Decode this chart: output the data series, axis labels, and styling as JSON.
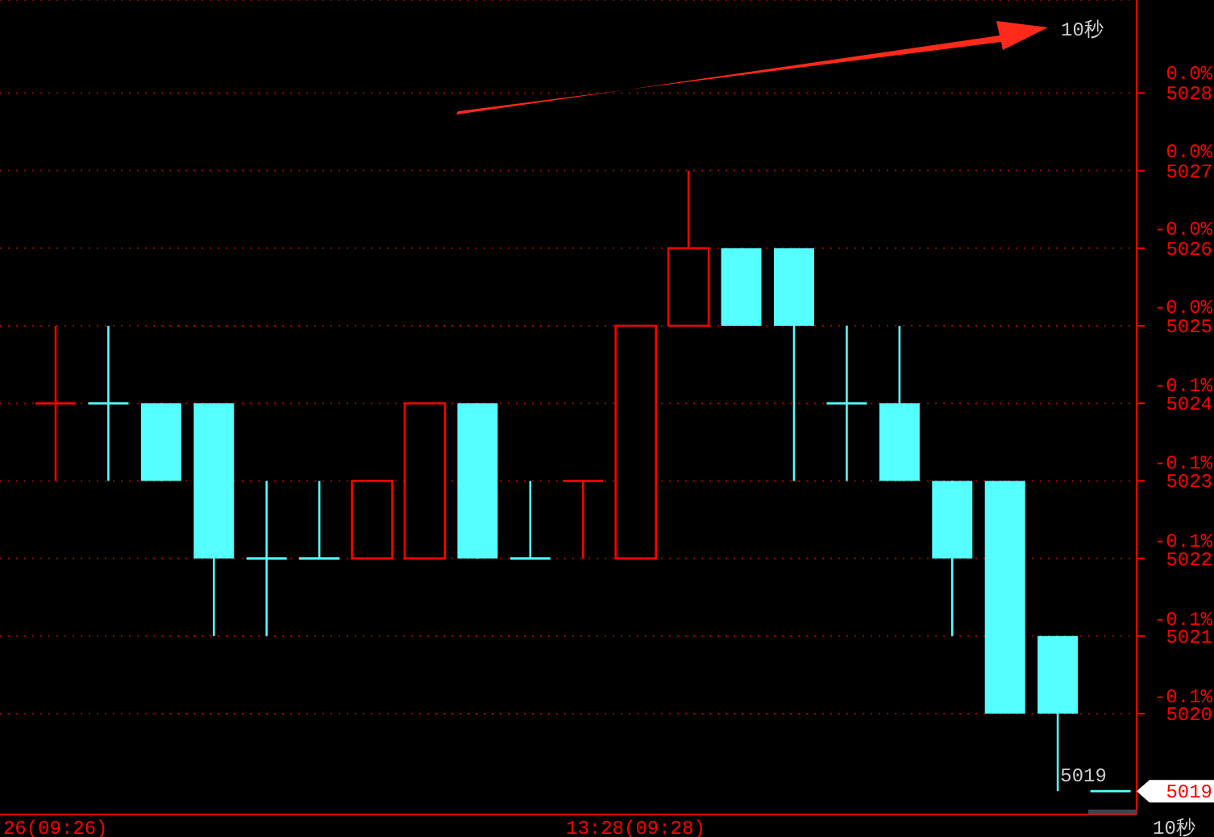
{
  "chart_data": {
    "type": "candlestick",
    "categories": [
      "26(09:26)",
      null,
      null,
      null,
      null,
      null,
      null,
      null,
      null,
      null,
      null,
      "13:28(09:28)",
      null,
      null,
      null,
      null,
      null,
      null,
      null,
      null,
      null
    ],
    "ohlc": [
      [
        5024,
        5025,
        5023,
        5024
      ],
      [
        5024,
        5025,
        5023,
        5024
      ],
      [
        5024,
        5024,
        5023,
        5023
      ],
      [
        5024,
        5024,
        5021,
        5022
      ],
      [
        5022,
        5023,
        5021,
        5022
      ],
      [
        5022,
        5023,
        5022,
        5022
      ],
      [
        5022,
        5023,
        5022,
        5023
      ],
      [
        5022,
        5024,
        5022,
        5024
      ],
      [
        5024,
        5024,
        5022,
        5022
      ],
      [
        5022,
        5023,
        5022,
        5022
      ],
      [
        5023,
        5023,
        5022,
        5023
      ],
      [
        5022,
        5025,
        5022,
        5025
      ],
      [
        5025,
        5027,
        5025,
        5026
      ],
      [
        5026,
        5026,
        5025,
        5025
      ],
      [
        5026,
        5026,
        5023,
        5025
      ],
      [
        5024,
        5025,
        5023,
        5024
      ],
      [
        5024,
        5025,
        5023,
        5023
      ],
      [
        5023,
        5023,
        5021,
        5022
      ],
      [
        5023,
        5023,
        5020,
        5020
      ],
      [
        5021,
        5021,
        5019,
        5020
      ],
      [
        5019,
        5019,
        5019,
        5019
      ]
    ],
    "colors": [
      "#ff0000",
      "#55ffff",
      "#55ffff",
      "#55ffff",
      "#55ffff",
      "#55ffff",
      "#ff0000",
      "#ff0000",
      "#55ffff",
      "#55ffff",
      "#ff0000",
      "#ff0000",
      "#ff0000",
      "#55ffff",
      "#55ffff",
      "#55ffff",
      "#55ffff",
      "#55ffff",
      "#55ffff",
      "#55ffff",
      "#55ffff"
    ],
    "ylim": [
      5018.7,
      5029.2
    ],
    "yticks": [
      5028,
      5027,
      5026,
      5025,
      5024,
      5023,
      5022,
      5021,
      5020
    ],
    "y2lim": [
      -0.165,
      0.044
    ],
    "y2ticks": [
      {
        "value": 0.02,
        "label": "0.0%"
      },
      {
        "value": 0,
        "label": "0.0%"
      },
      {
        "value": -0.02,
        "label": "-0.0%"
      },
      {
        "value": -0.04,
        "label": "-0.0%"
      },
      {
        "value": -0.06,
        "label": "-0.1%"
      },
      {
        "value": -0.08,
        "label": "-0.1%"
      },
      {
        "value": -0.1,
        "label": "-0.1%"
      },
      {
        "value": -0.12,
        "label": "-0.1%"
      },
      {
        "value": -0.14,
        "label": "-0.1%"
      }
    ],
    "grid": "y",
    "annotations": [
      "10秒",
      "5019",
      "5019",
      "10秒"
    ]
  }
}
